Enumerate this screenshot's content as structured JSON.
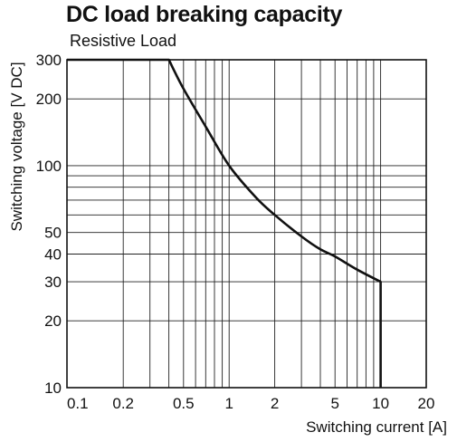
{
  "chart_data": {
    "type": "line",
    "title": "DC load breaking capacity",
    "subtitle": "Resistive Load",
    "xlabel": "Switching current [A]",
    "ylabel": "Switching voltage [V DC]",
    "xscale": "log",
    "yscale": "log",
    "xlim": [
      0.085,
      20
    ],
    "ylim": [
      10,
      300
    ],
    "x_ticks": [
      0.1,
      0.2,
      0.5,
      1,
      2,
      5,
      10,
      20
    ],
    "x_tick_labels": [
      "0.1",
      "0.2",
      "0.5",
      "1",
      "2",
      "5",
      "10",
      "20"
    ],
    "y_ticks": [
      10,
      20,
      30,
      40,
      50,
      100,
      200,
      300
    ],
    "y_tick_labels": [
      "10",
      "20",
      "30",
      "40",
      "50",
      "100",
      "200",
      "300"
    ],
    "x_gridlines": [
      0.2,
      0.3,
      0.4,
      0.5,
      0.6,
      0.7,
      0.8,
      0.9,
      1,
      2,
      3,
      4,
      5,
      6,
      7,
      8,
      9,
      10
    ],
    "y_gridlines": [
      20,
      30,
      40,
      50,
      60,
      70,
      80,
      90,
      100,
      200
    ],
    "grid": true,
    "legend": "none",
    "series": [
      {
        "x": [
          0.085,
          0.4,
          0.5,
          0.7,
          1.0,
          1.5,
          2.0,
          3.0,
          4.0,
          5.0,
          7.0,
          10.0,
          10.0
        ],
        "y": [
          300,
          300,
          222,
          150,
          100,
          72,
          60,
          48,
          42,
          39,
          34,
          30,
          10
        ]
      }
    ]
  }
}
